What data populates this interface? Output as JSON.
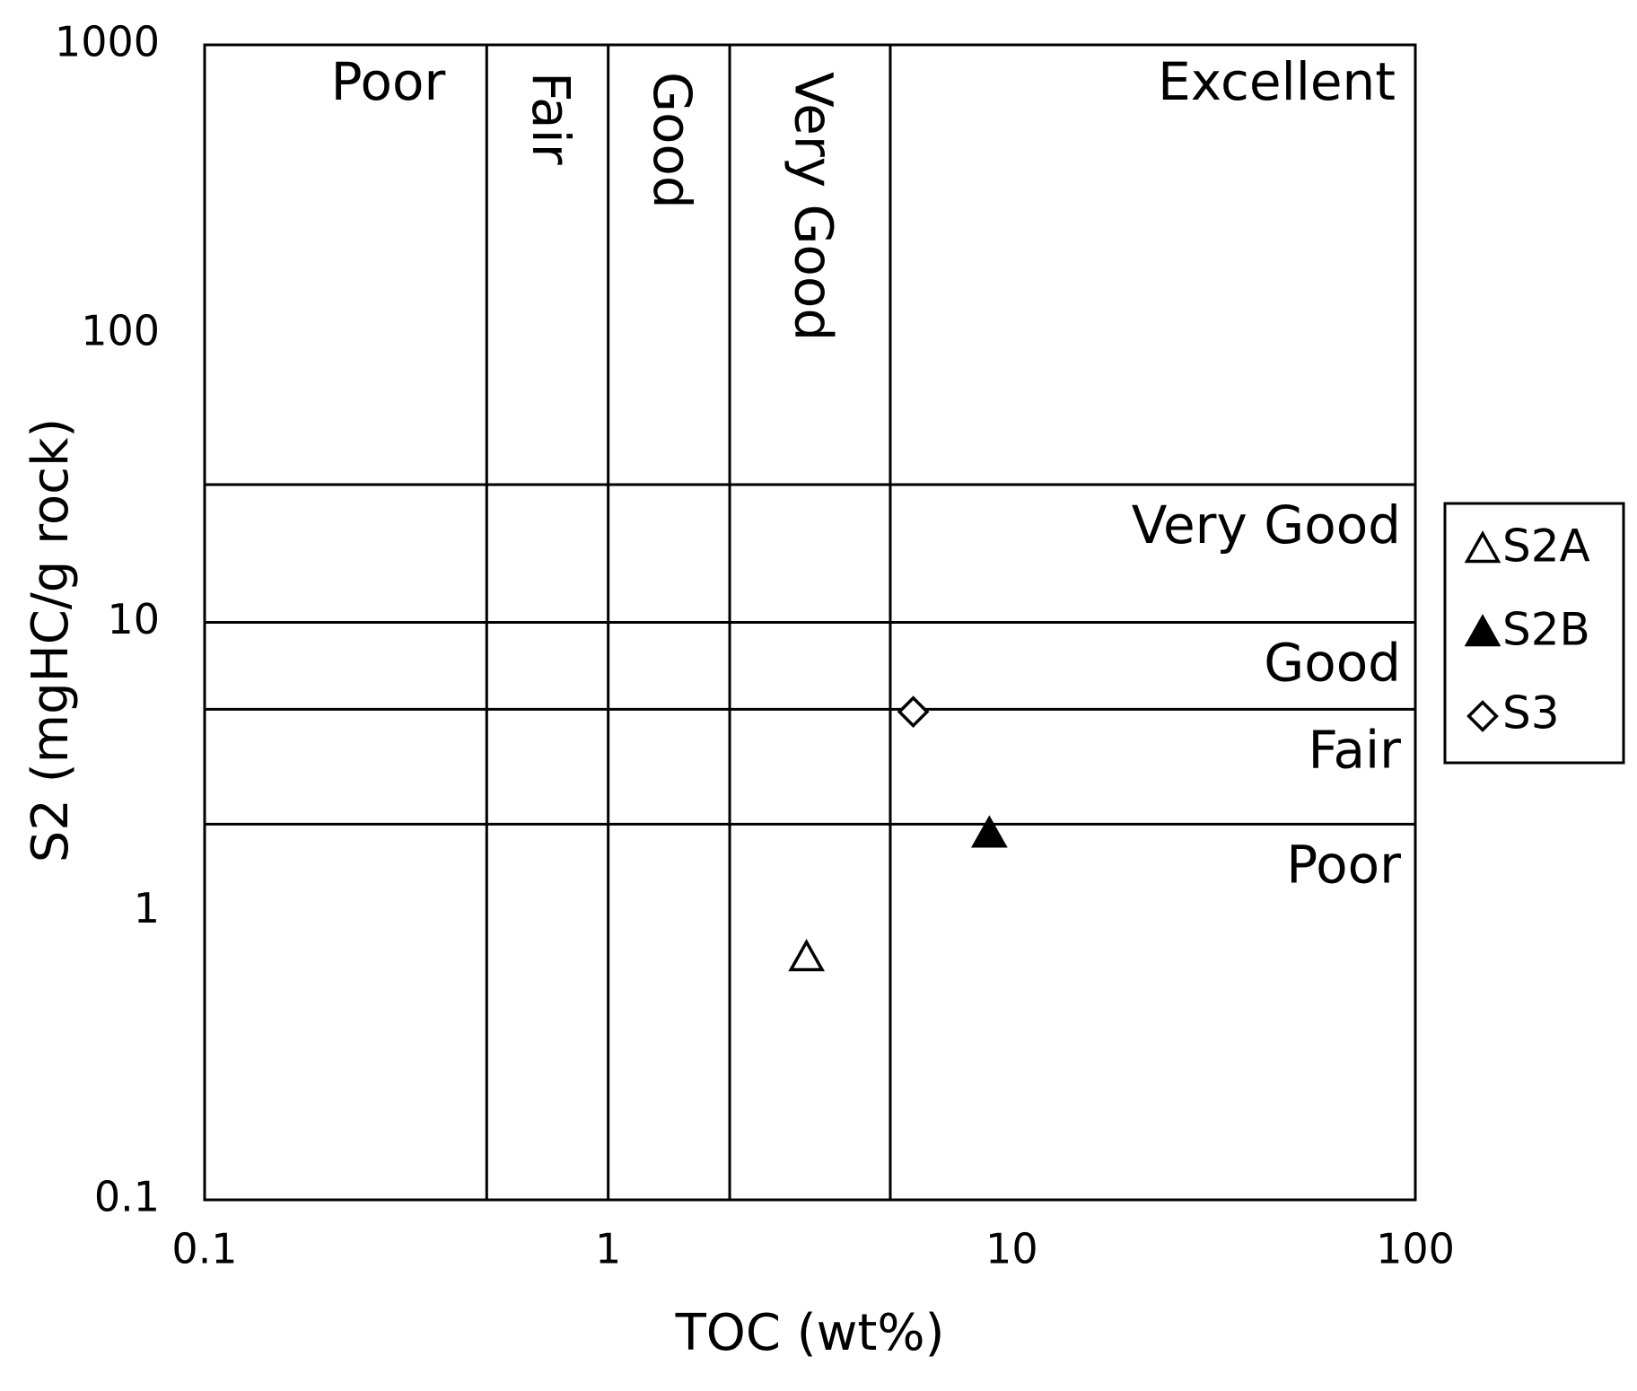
{
  "chart_data": {
    "type": "scatter",
    "x_label": "TOC (wt%)",
    "y_label": "S2 (mgHC/g rock)",
    "x_log": true,
    "y_log": true,
    "xlim": [
      0.1,
      100
    ],
    "ylim": [
      0.1,
      1000
    ],
    "xticks": [
      0.1,
      1,
      10,
      100
    ],
    "yticks": [
      0.1,
      1,
      10,
      100,
      1000
    ],
    "x_thresholds": [
      0.5,
      1,
      2,
      5
    ],
    "y_thresholds": [
      2,
      5,
      10,
      30
    ],
    "x_zone_labels": [
      "Poor",
      "Fair",
      "Good",
      "Very Good",
      "Excellent"
    ],
    "y_zone_labels": [
      "Poor",
      "Fair",
      "Good",
      "Very Good"
    ],
    "series": [
      {
        "name": "S2A",
        "marker": "triangle",
        "filled": false,
        "color": "#000000",
        "x": [
          3.1
        ],
        "y": [
          0.69
        ]
      },
      {
        "name": "S2B",
        "marker": "triangle",
        "filled": true,
        "color": "#000000",
        "x": [
          8.8
        ],
        "y": [
          1.85
        ]
      },
      {
        "name": "S3",
        "marker": "diamond",
        "filled": false,
        "color": "#000000",
        "x": [
          5.7
        ],
        "y": [
          4.9
        ]
      }
    ]
  }
}
